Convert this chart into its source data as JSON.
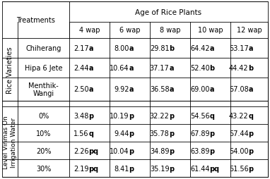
{
  "title": "Age of Rice Plants",
  "col_headers": [
    "4 wap",
    "6 wap",
    "8 wap",
    "10 wap",
    "12 wap"
  ],
  "row_group1_label": "Rice Varieties",
  "row_group2_label": "Level Vinmas On\nIrrigation Water",
  "treatments_label": "Treatments",
  "rows": [
    {
      "group": "Rice Varieties",
      "treatment": "Chiherang",
      "values": [
        [
          "2.17",
          "a"
        ],
        [
          "8.00",
          "a"
        ],
        [
          "29.81",
          "b"
        ],
        [
          "64.42",
          "a"
        ],
        [
          "53.17",
          "a"
        ]
      ]
    },
    {
      "group": "Rice Varieties",
      "treatment": "Hipa 6 Jete",
      "values": [
        [
          "2.44",
          "a"
        ],
        [
          "10.64",
          "a"
        ],
        [
          "37.17",
          "a"
        ],
        [
          "52.40",
          "b"
        ],
        [
          "44.42",
          "b"
        ]
      ]
    },
    {
      "group": "Rice Varieties",
      "treatment": "Menthik-\nWangi",
      "values": [
        [
          "2.50",
          "a"
        ],
        [
          "9.92",
          "a"
        ],
        [
          "36.58",
          "a"
        ],
        [
          "69.00",
          "a"
        ],
        [
          "57.08",
          "a"
        ]
      ]
    },
    {
      "group": "Level Vinmas",
      "treatment": "0%",
      "values": [
        [
          "3.48",
          "p"
        ],
        [
          "10.19",
          "p"
        ],
        [
          "32.22",
          "p"
        ],
        [
          "54.56",
          "q"
        ],
        [
          "43.22",
          "q"
        ]
      ]
    },
    {
      "group": "Level Vinmas",
      "treatment": "10%",
      "values": [
        [
          "1.56",
          "q"
        ],
        [
          "9.44",
          "p"
        ],
        [
          "35.78",
          "p"
        ],
        [
          "67.89",
          "p"
        ],
        [
          "57.44",
          "p"
        ]
      ]
    },
    {
      "group": "Level Vinmas",
      "treatment": "20%",
      "values": [
        [
          "2.26",
          "pq"
        ],
        [
          "10.04",
          "p"
        ],
        [
          "34.89",
          "p"
        ],
        [
          "63.89",
          "p"
        ],
        [
          "54.00",
          "p"
        ]
      ]
    },
    {
      "group": "Level Vinmas",
      "treatment": "30%",
      "values": [
        [
          "2.19",
          "pq"
        ],
        [
          "8.41",
          "p"
        ],
        [
          "35.19",
          "p"
        ],
        [
          "61.44",
          "pq"
        ],
        [
          "51.56",
          "p"
        ]
      ]
    }
  ],
  "bg_color": "#ffffff",
  "font_size": 7.0,
  "header_font_size": 7.5
}
